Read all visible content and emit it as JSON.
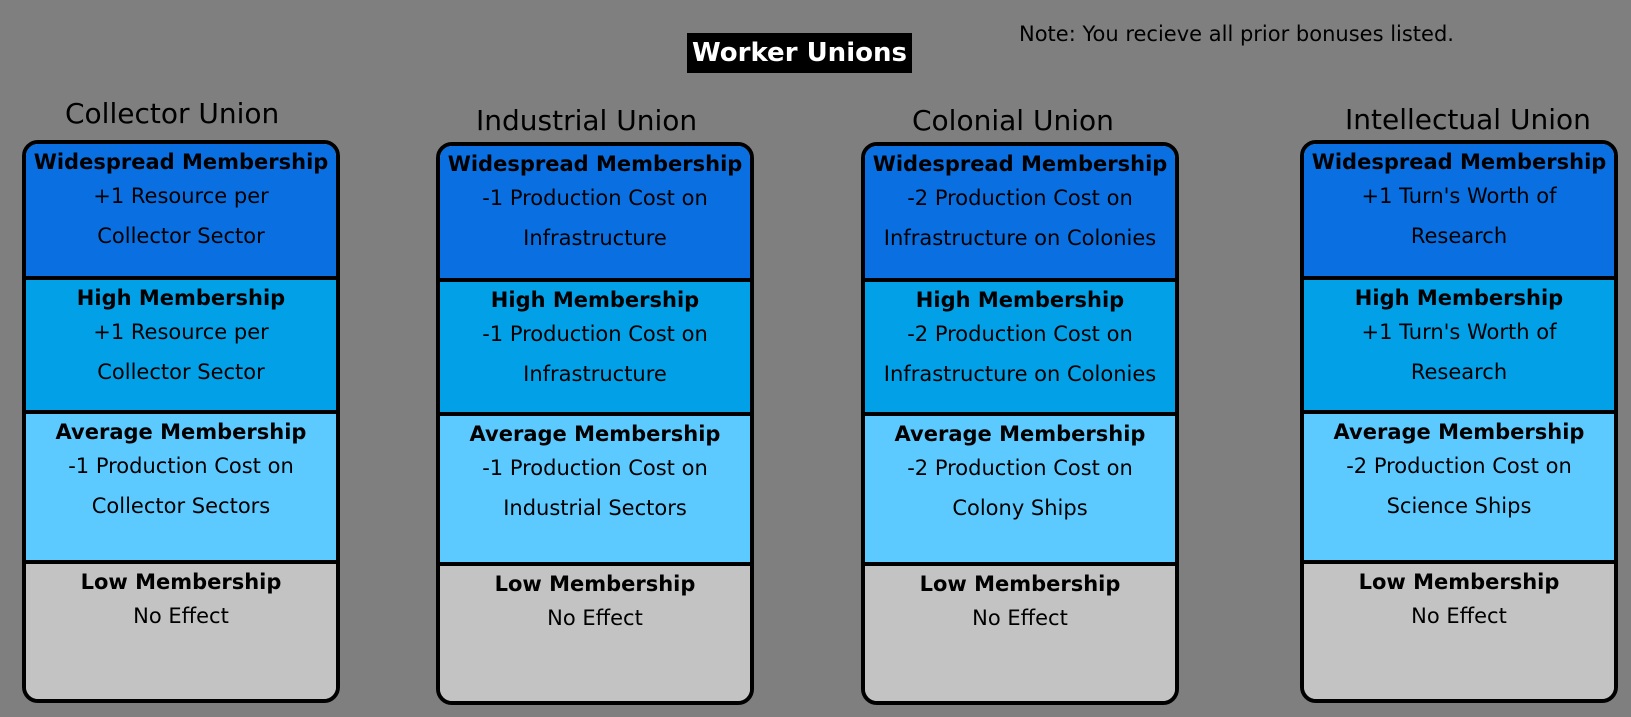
{
  "title": "Worker Unions",
  "note": "Note: You recieve all prior bonuses listed.",
  "unions": [
    {
      "name": "Collector Union",
      "tiers": {
        "widespread": {
          "name": "Widespread Membership",
          "effect": "+1 Resource per\nCollector Sector"
        },
        "high": {
          "name": "High Membership",
          "effect": "+1 Resource per\nCollector Sector"
        },
        "average": {
          "name": "Average Membership",
          "effect": "-1 Production Cost on\nCollector Sectors"
        },
        "low": {
          "name": "Low Membership",
          "effect": "No Effect"
        }
      }
    },
    {
      "name": "Industrial Union",
      "tiers": {
        "widespread": {
          "name": "Widespread Membership",
          "effect": "-1 Production Cost on\nInfrastructure"
        },
        "high": {
          "name": "High Membership",
          "effect": "-1 Production Cost on\nInfrastructure"
        },
        "average": {
          "name": "Average Membership",
          "effect": "-1 Production Cost on\nIndustrial Sectors"
        },
        "low": {
          "name": "Low Membership",
          "effect": "No Effect"
        }
      }
    },
    {
      "name": "Colonial Union",
      "tiers": {
        "widespread": {
          "name": "Widespread Membership",
          "effect": "-2 Production Cost on\nInfrastructure on Colonies"
        },
        "high": {
          "name": "High Membership",
          "effect": "-2 Production Cost on\nInfrastructure on Colonies"
        },
        "average": {
          "name": "Average Membership",
          "effect": "-2 Production Cost on\nColony Ships"
        },
        "low": {
          "name": "Low Membership",
          "effect": "No Effect"
        }
      }
    },
    {
      "name": "Intellectual Union",
      "tiers": {
        "widespread": {
          "name": "Widespread Membership",
          "effect": "+1 Turn's Worth of\nResearch"
        },
        "high": {
          "name": "High Membership",
          "effect": "+1 Turn's Worth of\nResearch"
        },
        "average": {
          "name": "Average Membership",
          "effect": "-2 Production Cost on\nScience Ships"
        },
        "low": {
          "name": "Low Membership",
          "effect": "No Effect"
        }
      }
    }
  ],
  "colors": {
    "background": "#7f7f7f",
    "widespread": "#0a6fe0",
    "high": "#02a0e6",
    "average": "#5ccaff",
    "low": "#c3c3c3"
  }
}
